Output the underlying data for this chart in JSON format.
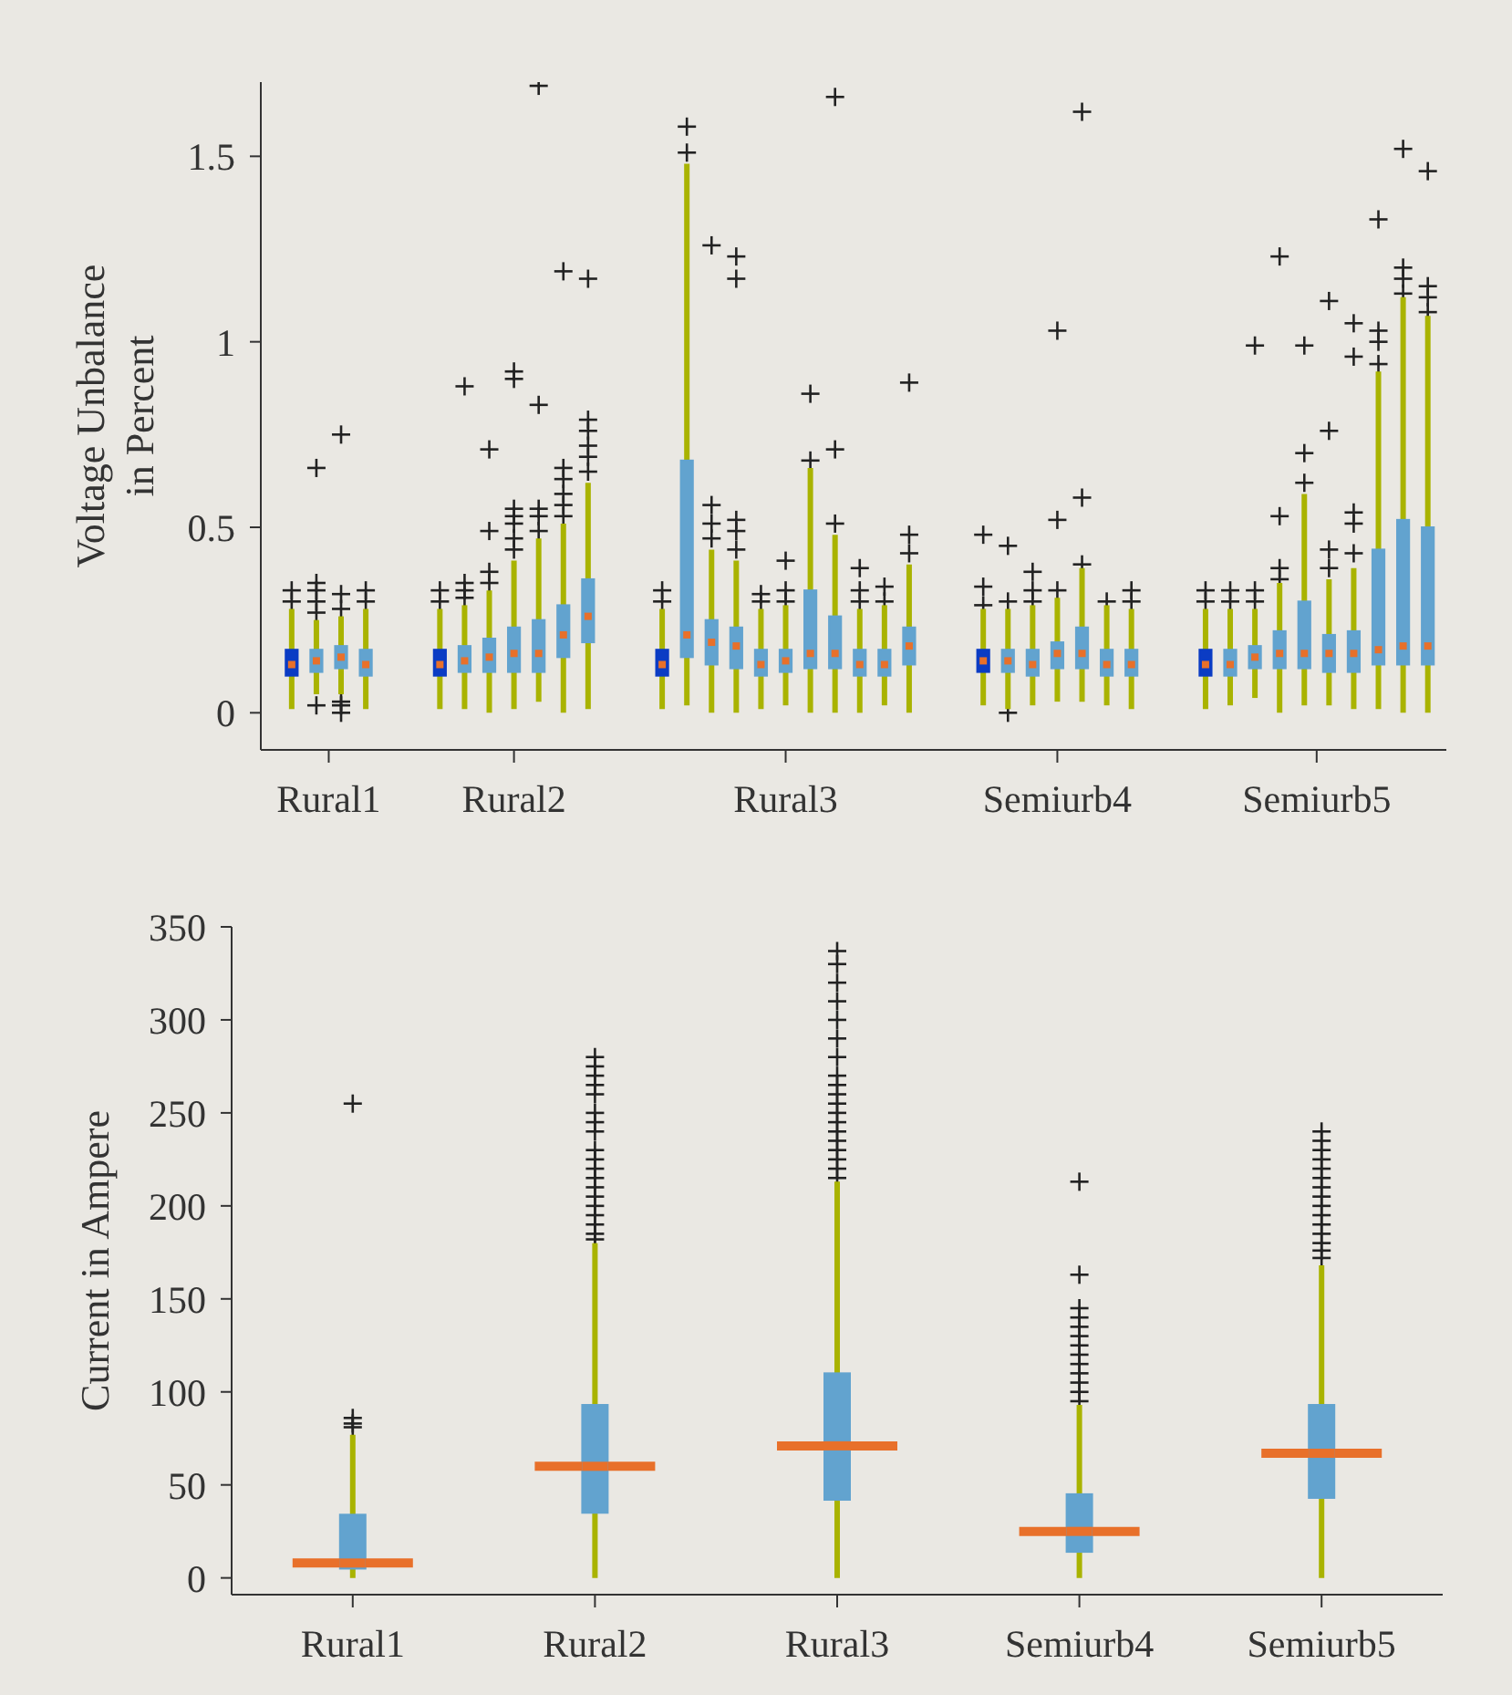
{
  "chart_data": [
    {
      "type": "box",
      "ylabel": "Voltage Unbalance in Percent",
      "categories": [
        null,
        null,
        null,
        null,
        null,
        "Rural1",
        null,
        null,
        null,
        null,
        null,
        null,
        null,
        null,
        null,
        null,
        null,
        null,
        null,
        null,
        "Rural2",
        null,
        null,
        null,
        null,
        null,
        null,
        null,
        null,
        null,
        null,
        null,
        null,
        null,
        null,
        null,
        null,
        null,
        null,
        null,
        null,
        null,
        "Rural3",
        null,
        null,
        null,
        null,
        null,
        null,
        null,
        null,
        null,
        null,
        null,
        null,
        null,
        null,
        null,
        null,
        null,
        null,
        null,
        null,
        null,
        "Semiurb4",
        null,
        null,
        null,
        null,
        null,
        null,
        null,
        null,
        null,
        null,
        null,
        null,
        null,
        null,
        null,
        null,
        null,
        null,
        null,
        null,
        "Semiurb5",
        null,
        null,
        null,
        null,
        null,
        null,
        null,
        null,
        null,
        null
      ],
      "ylim": [
        -0.1,
        1.7
      ],
      "yticks": [
        0,
        0.5,
        1,
        1.5
      ],
      "colors": [
        null,
        null,
        "#0b3cc4",
        null,
        "#62a3cf",
        null,
        "#62a3cf",
        null,
        "#62a3cf",
        null,
        null,
        null,
        null,
        null,
        "#0b3cc4",
        null,
        "#62a3cf",
        null,
        "#62a3cf",
        null,
        "#62a3cf",
        null,
        "#62a3cf",
        null,
        "#62a3cf",
        null,
        "#62a3cf",
        null,
        null,
        null,
        null,
        null,
        "#0b3cc4",
        null,
        "#62a3cf",
        null,
        "#62a3cf",
        null,
        "#62a3cf",
        null,
        "#62a3cf",
        null,
        "#62a3cf",
        null,
        "#62a3cf",
        null,
        "#62a3cf",
        null,
        "#62a3cf",
        null,
        "#62a3cf",
        null,
        "#62a3cf",
        null,
        null,
        null,
        null,
        null,
        "#0b3cc4",
        null,
        "#62a3cf",
        null,
        "#62a3cf",
        null,
        "#62a3cf",
        null,
        "#62a3cf",
        null,
        "#62a3cf",
        null,
        "#62a3cf",
        null,
        null,
        null,
        null,
        null,
        "#0b3cc4",
        null,
        "#62a3cf",
        null,
        "#62a3cf",
        null,
        "#62a3cf",
        null,
        "#62a3cf",
        null,
        "#62a3cf",
        null,
        "#62a3cf",
        null,
        "#62a3cf",
        null,
        "#62a3cf",
        null,
        "#62a3cf",
        null
      ],
      "boxes": [
        null,
        null,
        {
          "low": 0.01,
          "q1": 0.1,
          "median": 0.13,
          "q3": 0.17,
          "high": 0.28,
          "outliers": [
            0.3,
            0.33
          ]
        },
        null,
        {
          "low": 0.05,
          "q1": 0.11,
          "median": 0.14,
          "q3": 0.17,
          "high": 0.25,
          "outliers": [
            0.02,
            0.27,
            0.3,
            0.33,
            0.35,
            0.66
          ]
        },
        null,
        {
          "low": 0.05,
          "q1": 0.12,
          "median": 0.15,
          "q3": 0.18,
          "high": 0.26,
          "outliers": [
            0.0,
            0.02,
            0.03,
            0.28,
            0.32,
            0.75
          ]
        },
        null,
        {
          "low": 0.01,
          "q1": 0.1,
          "median": 0.13,
          "q3": 0.17,
          "high": 0.28,
          "outliers": [
            0.3,
            0.33
          ]
        },
        null,
        null,
        null,
        null,
        null,
        {
          "low": 0.01,
          "q1": 0.1,
          "median": 0.13,
          "q3": 0.17,
          "high": 0.28,
          "outliers": [
            0.3,
            0.33
          ]
        },
        null,
        {
          "low": 0.01,
          "q1": 0.11,
          "median": 0.14,
          "q3": 0.18,
          "high": 0.29,
          "outliers": [
            0.31,
            0.33,
            0.35,
            0.88
          ]
        },
        null,
        {
          "low": 0.0,
          "q1": 0.11,
          "median": 0.15,
          "q3": 0.2,
          "high": 0.33,
          "outliers": [
            0.35,
            0.38,
            0.49,
            0.71
          ]
        },
        null,
        {
          "low": 0.01,
          "q1": 0.11,
          "median": 0.16,
          "q3": 0.23,
          "high": 0.41,
          "outliers": [
            0.44,
            0.47,
            0.51,
            0.53,
            0.55,
            0.9,
            0.92
          ]
        },
        null,
        {
          "low": 0.03,
          "q1": 0.11,
          "median": 0.16,
          "q3": 0.25,
          "high": 0.47,
          "outliers": [
            0.49,
            0.53,
            0.55,
            0.83,
            1.69
          ]
        },
        null,
        {
          "low": 0.0,
          "q1": 0.15,
          "median": 0.21,
          "q3": 0.29,
          "high": 0.51,
          "outliers": [
            0.53,
            0.56,
            0.59,
            0.63,
            0.66,
            1.19
          ]
        },
        null,
        {
          "low": 0.01,
          "q1": 0.19,
          "median": 0.26,
          "q3": 0.36,
          "high": 0.62,
          "outliers": [
            0.65,
            0.69,
            0.72,
            0.76,
            0.79,
            1.17
          ]
        },
        null,
        null,
        null,
        null,
        null,
        {
          "low": 0.01,
          "q1": 0.1,
          "median": 0.13,
          "q3": 0.17,
          "high": 0.28,
          "outliers": [
            0.3,
            0.33
          ]
        },
        null,
        {
          "low": 0.02,
          "q1": 0.15,
          "median": 0.21,
          "q3": 0.68,
          "high": 1.48,
          "outliers": [
            1.51,
            1.58
          ]
        },
        null,
        {
          "low": 0.0,
          "q1": 0.13,
          "median": 0.19,
          "q3": 0.25,
          "high": 0.44,
          "outliers": [
            0.47,
            0.51,
            0.56,
            1.26
          ]
        },
        null,
        {
          "low": 0.0,
          "q1": 0.12,
          "median": 0.18,
          "q3": 0.23,
          "high": 0.41,
          "outliers": [
            0.44,
            0.49,
            0.52,
            1.17,
            1.23
          ]
        },
        null,
        {
          "low": 0.01,
          "q1": 0.1,
          "median": 0.13,
          "q3": 0.17,
          "high": 0.28,
          "outliers": [
            0.3,
            0.32
          ]
        },
        null,
        {
          "low": 0.02,
          "q1": 0.11,
          "median": 0.14,
          "q3": 0.17,
          "high": 0.29,
          "outliers": [
            0.3,
            0.33,
            0.41
          ]
        },
        null,
        {
          "low": 0.0,
          "q1": 0.12,
          "median": 0.16,
          "q3": 0.33,
          "high": 0.66,
          "outliers": [
            0.68,
            0.86
          ]
        },
        null,
        {
          "low": 0.0,
          "q1": 0.12,
          "median": 0.16,
          "q3": 0.26,
          "high": 0.48,
          "outliers": [
            0.51,
            0.71,
            1.66
          ]
        },
        null,
        {
          "low": 0.0,
          "q1": 0.1,
          "median": 0.13,
          "q3": 0.17,
          "high": 0.28,
          "outliers": [
            0.3,
            0.33,
            0.39
          ]
        },
        null,
        {
          "low": 0.02,
          "q1": 0.1,
          "median": 0.13,
          "q3": 0.17,
          "high": 0.29,
          "outliers": [
            0.3,
            0.34
          ]
        },
        null,
        {
          "low": 0.0,
          "q1": 0.13,
          "median": 0.18,
          "q3": 0.23,
          "high": 0.4,
          "outliers": [
            0.43,
            0.48,
            0.89
          ]
        },
        null,
        null,
        null,
        null,
        null,
        {
          "low": 0.02,
          "q1": 0.11,
          "median": 0.14,
          "q3": 0.17,
          "high": 0.28,
          "outliers": [
            0.29,
            0.34,
            0.48
          ]
        },
        null,
        {
          "low": 0.01,
          "q1": 0.11,
          "median": 0.14,
          "q3": 0.17,
          "high": 0.28,
          "outliers": [
            0.0,
            0.3,
            0.45
          ]
        },
        null,
        {
          "low": 0.02,
          "q1": 0.1,
          "median": 0.13,
          "q3": 0.17,
          "high": 0.29,
          "outliers": [
            0.3,
            0.33,
            0.38
          ]
        },
        null,
        {
          "low": 0.03,
          "q1": 0.12,
          "median": 0.16,
          "q3": 0.19,
          "high": 0.31,
          "outliers": [
            0.33,
            0.52,
            1.03
          ]
        },
        null,
        {
          "low": 0.03,
          "q1": 0.12,
          "median": 0.16,
          "q3": 0.23,
          "high": 0.39,
          "outliers": [
            0.4,
            0.58,
            1.62
          ]
        },
        null,
        {
          "low": 0.02,
          "q1": 0.1,
          "median": 0.13,
          "q3": 0.17,
          "high": 0.29,
          "outliers": [
            0.3
          ]
        },
        null,
        {
          "low": 0.01,
          "q1": 0.1,
          "median": 0.13,
          "q3": 0.17,
          "high": 0.28,
          "outliers": [
            0.3,
            0.33
          ]
        },
        null,
        null,
        null,
        null,
        null,
        {
          "low": 0.01,
          "q1": 0.1,
          "median": 0.13,
          "q3": 0.17,
          "high": 0.28,
          "outliers": [
            0.3,
            0.33
          ]
        },
        null,
        {
          "low": 0.02,
          "q1": 0.1,
          "median": 0.13,
          "q3": 0.17,
          "high": 0.28,
          "outliers": [
            0.3,
            0.33
          ]
        },
        null,
        {
          "low": 0.04,
          "q1": 0.12,
          "median": 0.15,
          "q3": 0.18,
          "high": 0.28,
          "outliers": [
            0.3,
            0.33,
            0.99
          ]
        },
        null,
        {
          "low": 0.0,
          "q1": 0.12,
          "median": 0.16,
          "q3": 0.22,
          "high": 0.35,
          "outliers": [
            0.36,
            0.39,
            0.53,
            1.23
          ]
        },
        null,
        {
          "low": 0.02,
          "q1": 0.12,
          "median": 0.16,
          "q3": 0.3,
          "high": 0.59,
          "outliers": [
            0.62,
            0.7,
            0.99
          ]
        },
        null,
        {
          "low": 0.02,
          "q1": 0.11,
          "median": 0.16,
          "q3": 0.21,
          "high": 0.36,
          "outliers": [
            0.39,
            0.44,
            0.76,
            1.11
          ]
        },
        null,
        {
          "low": 0.01,
          "q1": 0.11,
          "median": 0.16,
          "q3": 0.22,
          "high": 0.39,
          "outliers": [
            0.43,
            0.51,
            0.54,
            0.96,
            1.05
          ]
        },
        null,
        {
          "low": 0.01,
          "q1": 0.13,
          "median": 0.17,
          "q3": 0.44,
          "high": 0.92,
          "outliers": [
            0.94,
            1.0,
            1.03,
            1.33
          ]
        },
        null,
        {
          "low": 0.0,
          "q1": 0.13,
          "median": 0.18,
          "q3": 0.52,
          "high": 1.12,
          "outliers": [
            1.13,
            1.17,
            1.2,
            1.52
          ]
        },
        null,
        {
          "low": 0.0,
          "q1": 0.13,
          "median": 0.18,
          "q3": 0.5,
          "high": 1.07,
          "outliers": [
            1.08,
            1.12,
            1.15,
            1.46
          ]
        },
        null
      ]
    },
    {
      "type": "box",
      "ylabel": "Current in Ampere",
      "categories": [
        "Rural1",
        "Rural2",
        "Rural3",
        "Semiurb4",
        "Semiurb5"
      ],
      "ylim": [
        -9,
        350
      ],
      "yticks": [
        0,
        50,
        100,
        150,
        200,
        250,
        300,
        350
      ],
      "series": [
        {
          "color": "#62a3cf",
          "boxes": [
            {
              "low": 0,
              "q1": 5,
              "median": 8,
              "q3": 34,
              "high": 77,
              "outliers": [
                81,
                83,
                86,
                255
              ]
            },
            {
              "low": 0,
              "q1": 35,
              "median": 60,
              "q3": 93,
              "high": 180,
              "outliers": [
                182,
                185,
                190,
                195,
                200,
                205,
                210,
                215,
                220,
                225,
                230,
                240,
                245,
                250,
                260,
                265,
                270,
                275,
                280
              ]
            },
            {
              "low": 0,
              "q1": 42,
              "median": 71,
              "q3": 110,
              "high": 213,
              "outliers": [
                215,
                220,
                225,
                230,
                235,
                240,
                245,
                250,
                255,
                260,
                265,
                270,
                280,
                290,
                300,
                310,
                320,
                330,
                337
              ]
            },
            {
              "low": 0,
              "q1": 14,
              "median": 25,
              "q3": 45,
              "high": 93,
              "outliers": [
                95,
                100,
                105,
                110,
                115,
                120,
                125,
                130,
                135,
                140,
                145,
                163,
                213
              ]
            },
            {
              "low": 0,
              "q1": 43,
              "median": 67,
              "q3": 93,
              "high": 168,
              "outliers": [
                172,
                176,
                180,
                185,
                190,
                195,
                200,
                205,
                210,
                215,
                220,
                225,
                230,
                235,
                240
              ]
            }
          ]
        }
      ]
    }
  ]
}
